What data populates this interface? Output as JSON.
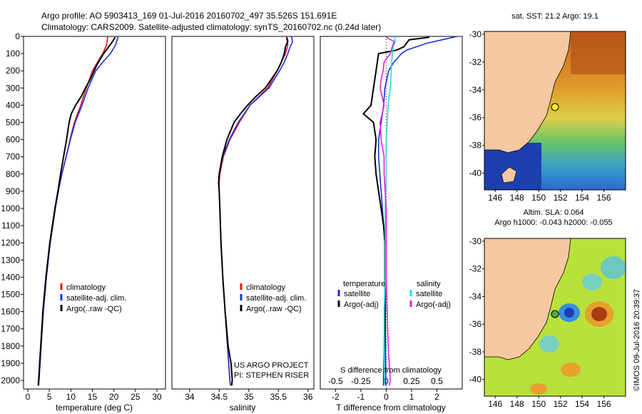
{
  "header": {
    "line1": "Argo profile: AO 5903413_169 01-Jul-2016 20160702_497 35.526S 151.691E",
    "line2": "Climatology: CARS2009. Satellite-adjusted climatology: synTS_20160702.nc (0.24d later)"
  },
  "colors": {
    "climatology": "#ee1111",
    "satellite": "#1a2fd6",
    "argo": "#000000",
    "sat_s": "#22dddd",
    "argo_s": "#dd22dd",
    "land": "#f5c8a0"
  },
  "depth_axis": {
    "ticks": [
      "0",
      "100",
      "200",
      "300",
      "400",
      "500",
      "600",
      "700",
      "800",
      "900",
      "1000",
      "1100",
      "1200",
      "1300",
      "1400",
      "1500",
      "1600",
      "1700",
      "1800",
      "1900",
      "2000"
    ]
  },
  "chart_data": [
    {
      "type": "line",
      "name": "temperature",
      "xlabel": "temperature (deg C)",
      "xlim": [
        -1,
        32
      ],
      "ylim": [
        2050,
        0
      ],
      "xticks": [
        "0",
        "5",
        "10",
        "15",
        "20",
        "25",
        "30"
      ],
      "legend": [
        "climatology",
        "satellite-adj. clim.",
        "Argo(..raw -QC)"
      ],
      "series": [
        {
          "name": "climatology",
          "color_key": "climatology",
          "depth": [
            0,
            50,
            100,
            150,
            200,
            300,
            400,
            500,
            600,
            700,
            800,
            900,
            1000,
            1200,
            1400,
            1600,
            1800,
            2000,
            2030
          ],
          "values": [
            18.6,
            18.3,
            17.4,
            16.2,
            15.0,
            13.6,
            12.3,
            10.8,
            9.8,
            8.9,
            7.9,
            7.1,
            6.4,
            5.2,
            4.3,
            3.6,
            3.1,
            2.6,
            2.5
          ]
        },
        {
          "name": "satellite-adj. clim.",
          "color_key": "satellite",
          "depth": [
            0,
            50,
            100,
            150,
            200,
            300,
            400,
            500,
            600,
            700,
            800,
            900,
            1000,
            1200,
            1400,
            1600,
            1800,
            2000,
            2030
          ],
          "values": [
            21.0,
            20.4,
            19.2,
            17.4,
            15.8,
            14.0,
            12.6,
            11.0,
            9.9,
            8.9,
            7.9,
            7.1,
            6.4,
            5.2,
            4.3,
            3.6,
            3.1,
            2.6,
            2.5
          ]
        },
        {
          "name": "Argo(..raw -QC)",
          "color_key": "argo",
          "depth": [
            5,
            30,
            60,
            100,
            150,
            200,
            250,
            300,
            350,
            400,
            450,
            500,
            600,
            700,
            800,
            900,
            1000,
            1200,
            1400,
            1600,
            1800,
            2000,
            2030
          ],
          "values": [
            20.3,
            19.7,
            18.8,
            17.6,
            16.4,
            15.4,
            14.5,
            13.4,
            12.4,
            11.1,
            10.1,
            9.6,
            9.0,
            8.3,
            7.6,
            7.0,
            6.3,
            5.1,
            4.2,
            3.5,
            3.0,
            2.5,
            2.4
          ]
        }
      ]
    },
    {
      "type": "line",
      "name": "salinity",
      "xlabel": "salinity",
      "xlim": [
        33.7,
        36.1
      ],
      "ylim": [
        2050,
        0
      ],
      "xticks": [
        "34",
        "34.5",
        "35",
        "35.5",
        "36"
      ],
      "legend": [
        "climatology",
        "satellite-adj. clim.",
        "Argo(..raw -QC)"
      ],
      "series": [
        {
          "name": "climatology",
          "color_key": "climatology",
          "depth": [
            0,
            50,
            100,
            200,
            300,
            400,
            500,
            600,
            700,
            800,
            850,
            900,
            1000,
            1200,
            1400,
            1600,
            1800,
            2000,
            2030
          ],
          "values": [
            35.64,
            35.66,
            35.62,
            35.48,
            35.32,
            35.02,
            34.84,
            34.68,
            34.57,
            34.51,
            34.5,
            34.5,
            34.51,
            34.53,
            34.56,
            34.6,
            34.64,
            34.68,
            34.69
          ]
        },
        {
          "name": "satellite-adj. clim.",
          "color_key": "satellite",
          "depth": [
            0,
            30,
            60,
            100,
            150,
            200,
            300,
            400,
            500,
            600,
            700,
            800,
            850,
            900,
            1000,
            1200,
            1400,
            1600,
            1800,
            2000,
            2030
          ],
          "values": [
            35.72,
            35.74,
            35.7,
            35.66,
            35.6,
            35.52,
            35.34,
            35.02,
            34.82,
            34.67,
            34.56,
            34.5,
            34.49,
            34.5,
            34.51,
            34.53,
            34.56,
            34.6,
            34.64,
            34.68,
            34.69
          ]
        },
        {
          "name": "Argo(..raw -QC)",
          "color_key": "argo",
          "depth": [
            5,
            30,
            60,
            100,
            150,
            200,
            250,
            300,
            350,
            400,
            450,
            500,
            600,
            700,
            800,
            850,
            900,
            1000,
            1200,
            1400,
            1600,
            1800,
            1900,
            2000,
            2030
          ],
          "values": [
            35.64,
            35.66,
            35.62,
            35.6,
            35.55,
            35.48,
            35.38,
            35.28,
            35.12,
            34.98,
            34.86,
            34.75,
            34.63,
            34.55,
            34.5,
            34.49,
            34.5,
            34.51,
            34.53,
            34.56,
            34.6,
            34.65,
            34.7,
            34.72,
            34.71
          ]
        }
      ]
    },
    {
      "type": "line",
      "name": "difference",
      "xlabel": "T difference from climatology",
      "xlabel_top": "S difference from climatology",
      "xlim": [
        -2.6,
        3.0
      ],
      "ylim": [
        2050,
        0
      ],
      "xticks": [
        "-2",
        "-1",
        "0",
        "1",
        "2"
      ],
      "top_ticks": [
        "-0.5",
        "-0.25",
        "0",
        "0.25",
        "0.5"
      ],
      "legend_left_title": "temperature",
      "legend_left": [
        "satellite",
        "Argo(-adj)"
      ],
      "legend_right_title": "salinity",
      "legend_right": [
        "satellite",
        "Argo(-adj)"
      ],
      "series": [
        {
          "name": "T satellite",
          "color_key": "satellite",
          "depth": [
            0,
            20,
            40,
            60,
            80,
            100,
            150,
            200,
            300,
            400,
            500,
            600,
            700,
            800,
            900,
            1000,
            1100,
            1200,
            2000,
            2030
          ],
          "values": [
            2.8,
            2.2,
            1.6,
            1.2,
            0.8,
            0.6,
            0.3,
            0.1,
            -0.05,
            -0.1,
            -0.2,
            -0.3,
            -0.3,
            -0.25,
            -0.2,
            -0.15,
            -0.1,
            -0.05,
            -0.02,
            -0.02
          ]
        },
        {
          "name": "T Argo(-adj)",
          "color_key": "argo",
          "depth": [
            5,
            20,
            40,
            60,
            80,
            100,
            200,
            300,
            400,
            450,
            500,
            600,
            700,
            800,
            900,
            1000,
            1100,
            1200,
            1400,
            1600,
            2000,
            2030
          ],
          "values": [
            1.7,
            0.9,
            0.8,
            0.7,
            0.4,
            -0.3,
            -0.4,
            -0.5,
            -0.6,
            -0.9,
            -0.5,
            -0.4,
            -0.45,
            -0.4,
            -0.3,
            -0.2,
            -0.1,
            -0.05,
            -0.05,
            -0.05,
            -0.1,
            -0.1
          ]
        },
        {
          "name": "S satellite",
          "color_key": "sat_s",
          "depth": [
            0,
            30,
            60,
            100,
            200,
            300,
            400,
            500,
            600,
            700,
            800,
            1000,
            1200,
            1400,
            1600,
            1800,
            2000,
            2030
          ],
          "values": [
            0.08,
            0.09,
            0.07,
            0.06,
            0.05,
            0.04,
            0.02,
            0.01,
            0.0,
            0.0,
            0.0,
            -0.01,
            -0.01,
            -0.01,
            -0.02,
            -0.02,
            -0.02,
            -0.02
          ]
        },
        {
          "name": "S Argo(-adj)",
          "color_key": "argo_s",
          "depth": [
            5,
            30,
            60,
            100,
            150,
            200,
            250,
            300,
            350,
            400,
            450,
            500,
            600,
            700,
            800,
            900,
            1000,
            1200,
            1400,
            1600,
            1800,
            2000,
            2030
          ],
          "values": [
            0.0,
            0.08,
            0.06,
            0.04,
            -0.02,
            -0.03,
            -0.05,
            -0.06,
            -0.04,
            -0.02,
            -0.04,
            -0.06,
            -0.05,
            -0.02,
            -0.02,
            -0.01,
            0.0,
            0.0,
            0.0,
            0.01,
            0.02,
            0.04,
            0.03
          ]
        }
      ]
    }
  ],
  "maps": [
    {
      "title": "sat. SST: 21.2 Argo: 19.1",
      "lat_ticks": [
        "-30",
        "-32",
        "-34",
        "-36",
        "-38",
        "-40"
      ],
      "lon_ticks": [
        "146",
        "148",
        "150",
        "152",
        "154",
        "156"
      ],
      "marker_fill": "#ffee00"
    },
    {
      "title_line1": "Altim. SLA: 0.064",
      "title_line2": "Argo h1000: -0.043 h2000: -0.055",
      "lat_ticks": [
        "-30",
        "-32",
        "-34",
        "-36",
        "-38",
        "-40"
      ],
      "lon_ticks": [
        "146",
        "148",
        "150",
        "152",
        "154",
        "156"
      ],
      "marker_fill": "#55aa44"
    }
  ],
  "credits": {
    "project_line1": "US ARGO PROJECT",
    "project_line2": "PI: STEPHEN RISER",
    "stamp": "©IMOS 09-Jul-2016 20:39:37"
  }
}
